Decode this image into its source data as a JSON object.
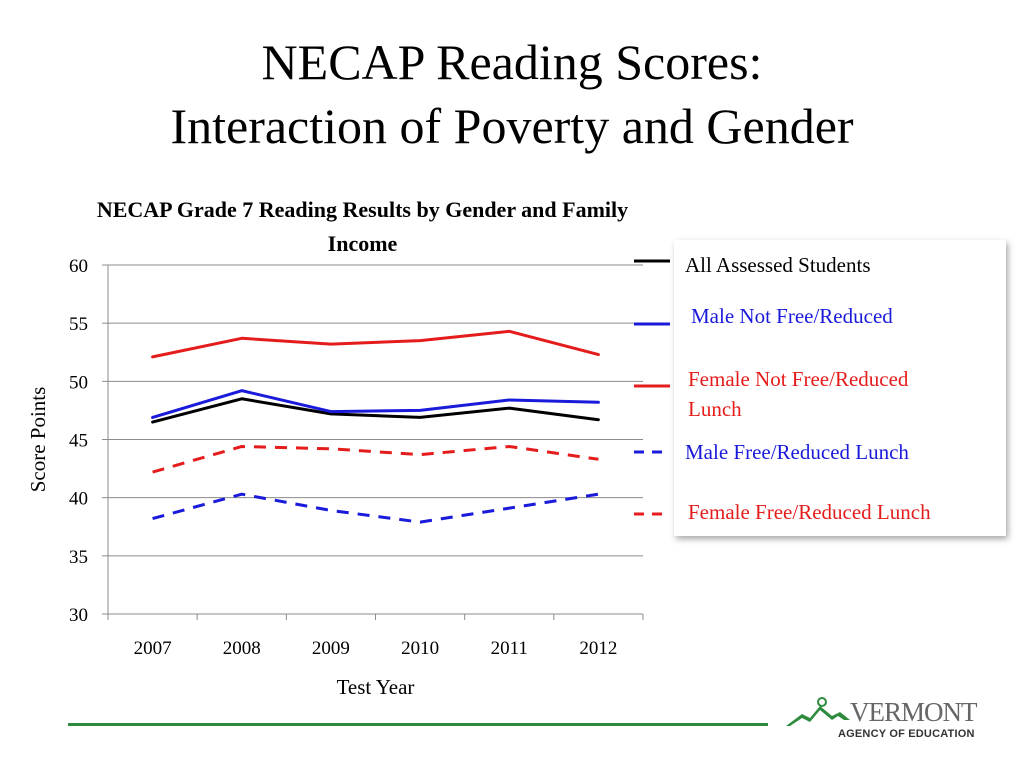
{
  "slide": {
    "title_line1": "NECAP Reading Scores:",
    "title_line2": "Interaction of Poverty and Gender"
  },
  "chart_data": {
    "type": "line",
    "title": "NECAP Grade 7 Reading Results by Gender and Family Income",
    "xlabel": "Test Year",
    "ylabel": "Score Points",
    "ylim": [
      30,
      60
    ],
    "yticks": [
      30,
      35,
      40,
      45,
      50,
      55,
      60
    ],
    "categories": [
      "2007",
      "2008",
      "2009",
      "2010",
      "2011",
      "2012"
    ],
    "grid": true,
    "legend_position": "right",
    "series": [
      {
        "name": "All Assessed Students",
        "color": "#000000",
        "dashed": false,
        "values": [
          46.5,
          48.5,
          47.2,
          46.9,
          47.7,
          46.7
        ]
      },
      {
        "name": "Male Not Free/Reduced",
        "color": "#1a1adb",
        "dashed": false,
        "values": [
          46.9,
          49.2,
          47.4,
          47.5,
          48.4,
          48.2
        ]
      },
      {
        "name": "Female Not Free/Reduced Lunch",
        "color": "#e51c1c",
        "dashed": false,
        "values": [
          52.1,
          53.7,
          53.2,
          53.5,
          54.3,
          52.3
        ]
      },
      {
        "name": "Male Free/Reduced Lunch",
        "color": "#1a1adb",
        "dashed": true,
        "values": [
          38.2,
          40.3,
          38.9,
          37.9,
          39.1,
          40.3
        ]
      },
      {
        "name": "Female Free/Reduced Lunch",
        "color": "#e51c1c",
        "dashed": true,
        "values": [
          42.2,
          44.4,
          44.2,
          43.7,
          44.4,
          43.3
        ]
      }
    ]
  },
  "logo": {
    "word": "VERMONT",
    "subtitle": "AGENCY OF EDUCATION"
  }
}
